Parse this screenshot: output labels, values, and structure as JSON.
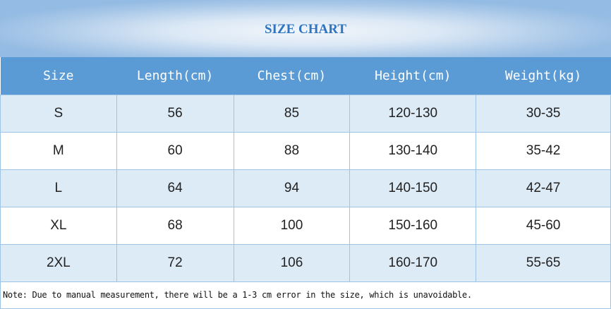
{
  "title": "SIZE CHART",
  "headers": [
    "Size",
    "Length(cm)",
    "Chest(cm)",
    "Height(cm)",
    "Weight(kg)"
  ],
  "rows": [
    [
      "S",
      "56",
      "85",
      "120-130",
      "30-35"
    ],
    [
      "M",
      "60",
      "88",
      "130-140",
      "35-42"
    ],
    [
      "L",
      "64",
      "94",
      "140-150",
      "42-47"
    ],
    [
      "XL",
      "68",
      "100",
      "150-160",
      "45-60"
    ],
    [
      "2XL",
      "72",
      "106",
      "160-170",
      "55-65"
    ]
  ],
  "note": "Note: Due to manual measurement, there will be a 1-3 cm error in the size, which is unavoidable.",
  "colors": {
    "header": "#5b9bd5",
    "title": "#2e74c0",
    "alt_row": "#ddebf7"
  }
}
